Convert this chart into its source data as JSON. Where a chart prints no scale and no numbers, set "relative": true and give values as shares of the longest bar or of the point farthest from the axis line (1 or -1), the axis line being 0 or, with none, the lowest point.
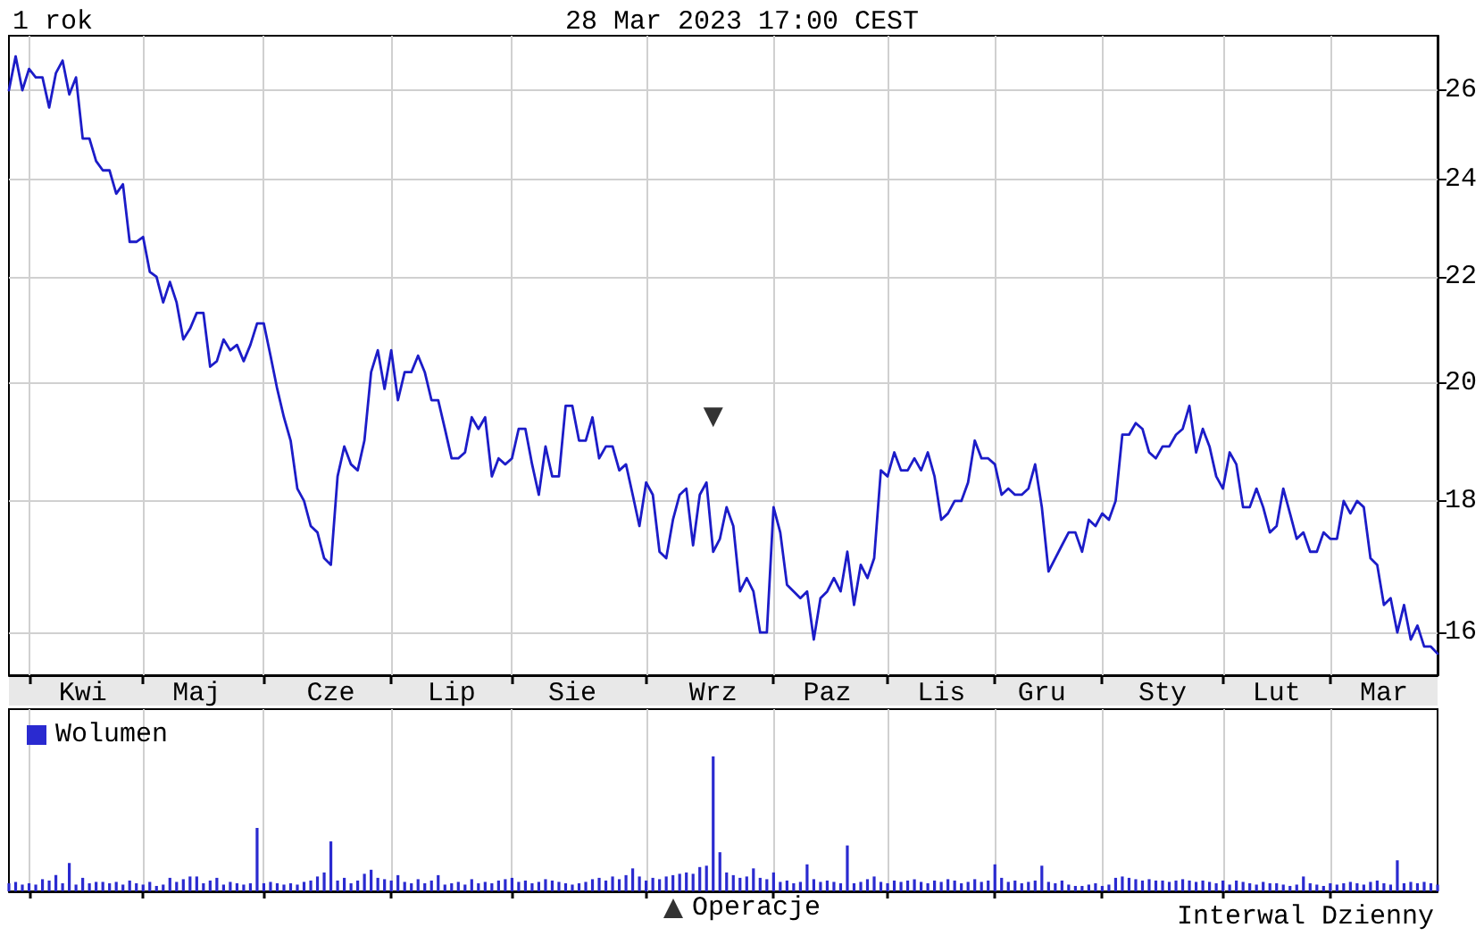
{
  "chart_data": [
    {
      "type": "line",
      "title": "1 rok",
      "subtitle": "28 Mar 2023 17:00 CEST",
      "annotations": [
        "Interwal Dzienny"
      ],
      "log": "y",
      "grid": true,
      "legend": "bottom",
      "ylim": [
        15.4,
        27.3
      ],
      "yticks": [
        16,
        18,
        20,
        22,
        24,
        26
      ],
      "categories": [
        null,
        null,
        null,
        null,
        null,
        null,
        null,
        null,
        null,
        null,
        null,
        "Kwi",
        null,
        null,
        null,
        null,
        null,
        null,
        null,
        null,
        null,
        null,
        null,
        null,
        null,
        null,
        null,
        null,
        "Maj",
        null,
        null,
        null,
        null,
        null,
        null,
        null,
        null,
        null,
        null,
        null,
        null,
        null,
        null,
        null,
        null,
        null,
        null,
        null,
        "Cze",
        null,
        null,
        null,
        null,
        null,
        null,
        null,
        null,
        null,
        null,
        null,
        null,
        null,
        null,
        null,
        null,
        null,
        "Lip",
        null,
        null,
        null,
        null,
        null,
        null,
        null,
        null,
        null,
        null,
        null,
        null,
        null,
        null,
        null,
        null,
        null,
        "Sie",
        null,
        null,
        null,
        null,
        null,
        null,
        null,
        null,
        null,
        null,
        null,
        null,
        null,
        null,
        null,
        null,
        null,
        null,
        null,
        null,
        "Wrz",
        null,
        null,
        null,
        null,
        null,
        null,
        null,
        null,
        null,
        null,
        null,
        null,
        null,
        null,
        null,
        null,
        "Paz",
        null,
        null,
        null,
        null,
        null,
        null,
        null,
        null,
        null,
        null,
        null,
        null,
        null,
        null,
        null,
        null,
        "Lis",
        null,
        null,
        null,
        null,
        null,
        null,
        null,
        null,
        null,
        null,
        null,
        null,
        null,
        null,
        "Gru",
        null,
        null,
        null,
        null,
        null,
        null,
        null,
        null,
        null,
        null,
        null,
        null,
        null,
        null,
        null,
        null,
        null,
        "Sty",
        null,
        null,
        null,
        null,
        null,
        null,
        null,
        null,
        null,
        null,
        null,
        null,
        null,
        null,
        null,
        null,
        "Lut",
        null,
        null,
        null,
        null,
        null,
        null,
        null,
        null,
        null,
        null,
        null,
        null,
        null,
        null,
        null,
        "Mar",
        null,
        null,
        null,
        null,
        null,
        null,
        null,
        null
      ],
      "series": [
        {
          "color": "#1c1cc8",
          "values": [
            26.0,
            26.8,
            26.0,
            26.5,
            26.3,
            26.3,
            25.6,
            26.4,
            26.7,
            25.9,
            26.3,
            24.9,
            24.9,
            24.4,
            24.2,
            24.2,
            23.7,
            23.9,
            22.7,
            22.7,
            22.8,
            22.1,
            22.0,
            21.5,
            21.9,
            21.5,
            20.8,
            21.0,
            21.3,
            21.3,
            20.3,
            20.4,
            20.8,
            20.6,
            20.7,
            20.4,
            20.7,
            21.1,
            21.1,
            20.5,
            19.9,
            19.4,
            19.0,
            18.2,
            18.0,
            17.6,
            17.5,
            17.1,
            17.0,
            18.4,
            18.9,
            18.6,
            18.5,
            19.0,
            20.2,
            20.6,
            19.9,
            20.6,
            19.7,
            20.2,
            20.2,
            20.5,
            20.2,
            19.7,
            19.7,
            19.2,
            18.7,
            18.7,
            18.8,
            19.4,
            19.2,
            19.4,
            18.4,
            18.7,
            18.6,
            18.7,
            19.2,
            19.2,
            18.6,
            18.1,
            18.9,
            18.4,
            18.4,
            19.6,
            19.6,
            19.0,
            19.0,
            19.4,
            18.7,
            18.9,
            18.9,
            18.5,
            18.6,
            18.1,
            17.6,
            18.3,
            18.1,
            17.2,
            17.1,
            17.7,
            18.1,
            18.2,
            17.3,
            18.1,
            18.3,
            17.2,
            17.4,
            17.9,
            17.6,
            16.6,
            16.8,
            16.6,
            16.0,
            16.0,
            17.9,
            17.5,
            16.7,
            16.6,
            16.5,
            16.6,
            15.9,
            16.5,
            16.6,
            16.8,
            16.6,
            17.2,
            16.4,
            17.0,
            16.8,
            17.1,
            18.5,
            18.4,
            18.8,
            18.5,
            18.5,
            18.7,
            18.5,
            18.8,
            18.4,
            17.7,
            17.8,
            18.0,
            18.0,
            18.3,
            19.0,
            18.7,
            18.7,
            18.6,
            18.1,
            18.2,
            18.1,
            18.1,
            18.2,
            18.6,
            17.9,
            16.9,
            17.1,
            17.3,
            17.5,
            17.5,
            17.2,
            17.7,
            17.6,
            17.8,
            17.7,
            18.0,
            19.1,
            19.1,
            19.3,
            19.2,
            18.8,
            18.7,
            18.9,
            18.9,
            19.1,
            19.2,
            19.6,
            18.8,
            19.2,
            18.9,
            18.4,
            18.2,
            18.8,
            18.6,
            17.9,
            17.9,
            18.2,
            17.9,
            17.5,
            17.6,
            18.2,
            17.8,
            17.4,
            17.5,
            17.2,
            17.2,
            17.5,
            17.4,
            17.4,
            18.0,
            17.8,
            18.0,
            17.9,
            17.1,
            17.0,
            16.4,
            16.5,
            16.0,
            16.4,
            15.9,
            16.1,
            15.8,
            15.8,
            15.7
          ]
        },
        {
          "name": "Operacje",
          "type": "scatter",
          "marker": "triangle",
          "color": "#000000",
          "x": [
            "Wrz"
          ],
          "values": [
            19.4
          ]
        }
      ]
    },
    {
      "type": "bar",
      "relative": true,
      "grid": "x",
      "legend": "top left",
      "categories": [
        null,
        null,
        null,
        null,
        null,
        null,
        null,
        null,
        null,
        null,
        null,
        null,
        null,
        null,
        null,
        null,
        null,
        null,
        null,
        null,
        null,
        null,
        null,
        null,
        null,
        null,
        null,
        null,
        null,
        null,
        null,
        null,
        null,
        null,
        null,
        null,
        null,
        null,
        null,
        null,
        null,
        null,
        null,
        null,
        null,
        null,
        null,
        null,
        null,
        null,
        null,
        null,
        null,
        null,
        null,
        null,
        null,
        null,
        null,
        null,
        null,
        null,
        null,
        null,
        null,
        null,
        null,
        null,
        null,
        null,
        null,
        null,
        null,
        null,
        null,
        null,
        null,
        null,
        null,
        null,
        null,
        null,
        null,
        null,
        null,
        null,
        null,
        null,
        null,
        null,
        null,
        null,
        null,
        null,
        null,
        null,
        null,
        null,
        null,
        null,
        null,
        null,
        null,
        null,
        null,
        null,
        null,
        null,
        null,
        null,
        null,
        null,
        null,
        null,
        null,
        null,
        null,
        null,
        null,
        null,
        null,
        null,
        null,
        null,
        null,
        null,
        null,
        null,
        null,
        null,
        null,
        null,
        null,
        null,
        null,
        null,
        null,
        null,
        null,
        null,
        null,
        null,
        null,
        null,
        null,
        null,
        null,
        null,
        null,
        null,
        null,
        null,
        null,
        null,
        null,
        null,
        null,
        null,
        null,
        null,
        null,
        null,
        null,
        null,
        null,
        null,
        null,
        null,
        null,
        null,
        null,
        null,
        null,
        null,
        null,
        null,
        null,
        null,
        null,
        null,
        null,
        null,
        null,
        null,
        null,
        null,
        null,
        null,
        null,
        null,
        null,
        null,
        null,
        null,
        null,
        null,
        null,
        null,
        null,
        null,
        null,
        null,
        null,
        null,
        null,
        null,
        null,
        null,
        null,
        null,
        null,
        null,
        null,
        null
      ],
      "series": [
        {
          "name": "Wolumen",
          "color": "#2a2ad0",
          "values": [
            0.06,
            0.07,
            0.05,
            0.06,
            0.05,
            0.09,
            0.08,
            0.12,
            0.06,
            0.21,
            0.05,
            0.1,
            0.06,
            0.07,
            0.07,
            0.06,
            0.07,
            0.05,
            0.08,
            0.06,
            0.05,
            0.07,
            0.04,
            0.05,
            0.1,
            0.07,
            0.09,
            0.11,
            0.11,
            0.06,
            0.08,
            0.1,
            0.05,
            0.07,
            0.06,
            0.05,
            0.06,
            0.47,
            0.06,
            0.07,
            0.06,
            0.05,
            0.06,
            0.05,
            0.07,
            0.08,
            0.11,
            0.14,
            0.37,
            0.08,
            0.1,
            0.06,
            0.08,
            0.13,
            0.16,
            0.1,
            0.09,
            0.08,
            0.12,
            0.07,
            0.06,
            0.09,
            0.06,
            0.08,
            0.12,
            0.05,
            0.06,
            0.07,
            0.05,
            0.09,
            0.06,
            0.07,
            0.06,
            0.08,
            0.09,
            0.1,
            0.07,
            0.08,
            0.06,
            0.07,
            0.09,
            0.08,
            0.07,
            0.06,
            0.05,
            0.06,
            0.07,
            0.09,
            0.1,
            0.08,
            0.11,
            0.09,
            0.12,
            0.17,
            0.11,
            0.08,
            0.1,
            0.09,
            0.11,
            0.12,
            0.13,
            0.14,
            0.13,
            0.18,
            0.19,
            1.0,
            0.29,
            0.14,
            0.12,
            0.1,
            0.11,
            0.17,
            0.1,
            0.09,
            0.14,
            0.07,
            0.08,
            0.06,
            0.07,
            0.2,
            0.09,
            0.07,
            0.08,
            0.07,
            0.06,
            0.34,
            0.06,
            0.07,
            0.09,
            0.11,
            0.07,
            0.06,
            0.08,
            0.07,
            0.08,
            0.09,
            0.07,
            0.06,
            0.08,
            0.07,
            0.09,
            0.08,
            0.06,
            0.07,
            0.09,
            0.07,
            0.08,
            0.2,
            0.1,
            0.07,
            0.08,
            0.06,
            0.07,
            0.08,
            0.19,
            0.07,
            0.06,
            0.08,
            0.05,
            0.04,
            0.04,
            0.05,
            0.06,
            0.04,
            0.05,
            0.1,
            0.11,
            0.1,
            0.09,
            0.08,
            0.09,
            0.08,
            0.08,
            0.07,
            0.08,
            0.09,
            0.08,
            0.07,
            0.08,
            0.07,
            0.06,
            0.08,
            0.05,
            0.08,
            0.07,
            0.06,
            0.05,
            0.07,
            0.06,
            0.06,
            0.05,
            0.04,
            0.05,
            0.11,
            0.06,
            0.05,
            0.04,
            0.06,
            0.05,
            0.06,
            0.07,
            0.06,
            0.05,
            0.07,
            0.08,
            0.06,
            0.05,
            0.23,
            0.06,
            0.07,
            0.06,
            0.07,
            0.06,
            0.05
          ]
        }
      ]
    }
  ]
}
